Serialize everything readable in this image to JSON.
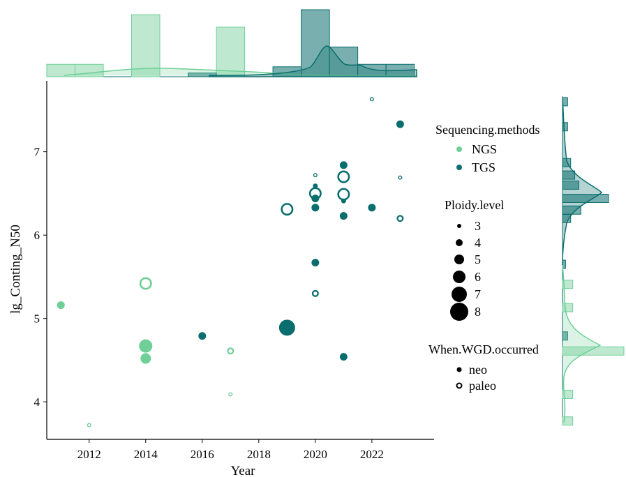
{
  "chart_data": {
    "type": "scatter",
    "xlabel": "Year",
    "ylabel": "lg_Conting_N50",
    "xlim": [
      2010.5,
      2024.2
    ],
    "ylim": [
      3.55,
      7.85
    ],
    "x_ticks": [
      2012,
      2014,
      2016,
      2018,
      2020,
      2022
    ],
    "y_ticks": [
      4,
      5,
      6,
      7
    ],
    "colors": {
      "NGS": "#6fcf97",
      "TGS": "#0b6e6e"
    },
    "legends": {
      "sequencing": {
        "title": "Sequencing.methods",
        "items": [
          "NGS",
          "TGS"
        ]
      },
      "ploidy": {
        "title": "Ploidy.level",
        "items": [
          3,
          4,
          5,
          6,
          7,
          8
        ]
      },
      "wgd": {
        "title": "When.WGD.occurred",
        "items": [
          "neo",
          "paleo"
        ]
      }
    },
    "points": [
      {
        "x": 2011,
        "y": 5.16,
        "method": "NGS",
        "wgd": "neo",
        "ploidy": 4
      },
      {
        "x": 2012,
        "y": 3.72,
        "method": "NGS",
        "wgd": "paleo",
        "ploidy": 3
      },
      {
        "x": 2014,
        "y": 5.42,
        "method": "NGS",
        "wgd": "paleo",
        "ploidy": 6
      },
      {
        "x": 2014,
        "y": 4.67,
        "method": "NGS",
        "wgd": "neo",
        "ploidy": 6
      },
      {
        "x": 2014,
        "y": 4.52,
        "method": "NGS",
        "wgd": "neo",
        "ploidy": 5
      },
      {
        "x": 2016,
        "y": 4.79,
        "method": "TGS",
        "wgd": "neo",
        "ploidy": 4
      },
      {
        "x": 2017,
        "y": 4.61,
        "method": "NGS",
        "wgd": "paleo",
        "ploidy": 4
      },
      {
        "x": 2017,
        "y": 4.09,
        "method": "NGS",
        "wgd": "paleo",
        "ploidy": 3
      },
      {
        "x": 2019,
        "y": 4.89,
        "method": "TGS",
        "wgd": "neo",
        "ploidy": 7
      },
      {
        "x": 2019,
        "y": 6.31,
        "method": "TGS",
        "wgd": "paleo",
        "ploidy": 6
      },
      {
        "x": 2020,
        "y": 6.72,
        "method": "TGS",
        "wgd": "paleo",
        "ploidy": 3
      },
      {
        "x": 2020,
        "y": 6.59,
        "method": "TGS",
        "wgd": "neo",
        "ploidy": 3
      },
      {
        "x": 2020,
        "y": 6.5,
        "method": "TGS",
        "wgd": "paleo",
        "ploidy": 6
      },
      {
        "x": 2020,
        "y": 6.44,
        "method": "TGS",
        "wgd": "neo",
        "ploidy": 4
      },
      {
        "x": 2020,
        "y": 6.33,
        "method": "TGS",
        "wgd": "neo",
        "ploidy": 4
      },
      {
        "x": 2020,
        "y": 5.67,
        "method": "TGS",
        "wgd": "neo",
        "ploidy": 4
      },
      {
        "x": 2020,
        "y": 5.3,
        "method": "TGS",
        "wgd": "paleo",
        "ploidy": 4
      },
      {
        "x": 2021,
        "y": 6.84,
        "method": "TGS",
        "wgd": "neo",
        "ploidy": 4
      },
      {
        "x": 2021,
        "y": 6.7,
        "method": "TGS",
        "wgd": "paleo",
        "ploidy": 6
      },
      {
        "x": 2021,
        "y": 6.49,
        "method": "TGS",
        "wgd": "paleo",
        "ploidy": 6
      },
      {
        "x": 2021,
        "y": 6.41,
        "method": "TGS",
        "wgd": "neo",
        "ploidy": 3
      },
      {
        "x": 2021,
        "y": 6.23,
        "method": "TGS",
        "wgd": "neo",
        "ploidy": 4
      },
      {
        "x": 2021,
        "y": 4.54,
        "method": "TGS",
        "wgd": "neo",
        "ploidy": 4
      },
      {
        "x": 2022,
        "y": 7.63,
        "method": "TGS",
        "wgd": "paleo",
        "ploidy": 3
      },
      {
        "x": 2022,
        "y": 6.33,
        "method": "TGS",
        "wgd": "neo",
        "ploidy": 4
      },
      {
        "x": 2023,
        "y": 7.33,
        "method": "TGS",
        "wgd": "neo",
        "ploidy": 4
      },
      {
        "x": 2023,
        "y": 6.69,
        "method": "TGS",
        "wgd": "paleo",
        "ploidy": 3
      },
      {
        "x": 2023,
        "y": 6.2,
        "method": "TGS",
        "wgd": "paleo",
        "ploidy": 4
      }
    ],
    "marginal_top": {
      "NGS": [
        {
          "x": 2011,
          "count": 1
        },
        {
          "x": 2012,
          "count": 1
        },
        {
          "x": 2014,
          "count": 5
        },
        {
          "x": 2017,
          "count": 4
        }
      ],
      "TGS": [
        {
          "x": 2016,
          "count": 0.3
        },
        {
          "x": 2019,
          "count": 0.8
        },
        {
          "x": 2020,
          "count": 5.4
        },
        {
          "x": 2021,
          "count": 2.4
        },
        {
          "x": 2022,
          "count": 1
        },
        {
          "x": 2023,
          "count": 1
        }
      ]
    },
    "marginal_right": {
      "NGS": [
        {
          "y": 3.77,
          "count": 1
        },
        {
          "y": 4.09,
          "count": 1
        },
        {
          "y": 4.61,
          "count": 6
        },
        {
          "y": 5.13,
          "count": 1
        },
        {
          "y": 5.41,
          "count": 1
        }
      ],
      "TGS": [
        {
          "y": 4.79,
          "count": 0.5
        },
        {
          "y": 5.65,
          "count": 0.3
        },
        {
          "y": 6.2,
          "count": 0.8
        },
        {
          "y": 6.3,
          "count": 1.8
        },
        {
          "y": 6.44,
          "count": 4.5
        },
        {
          "y": 6.6,
          "count": 1.6
        },
        {
          "y": 6.72,
          "count": 1.2
        },
        {
          "y": 6.87,
          "count": 0.8
        },
        {
          "y": 7.3,
          "count": 0.5
        },
        {
          "y": 7.6,
          "count": 0.5
        }
      ]
    }
  }
}
